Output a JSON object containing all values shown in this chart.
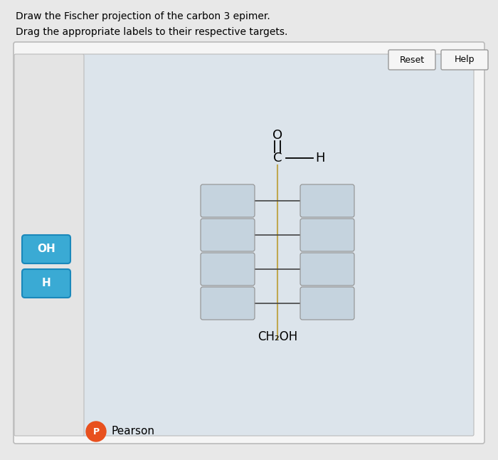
{
  "title_line1": "Draw the Fischer projection of the carbon 3 epimer.",
  "title_line2": "Drag the appropriate labels to their respective targets.",
  "bg_outer": "#e8e8e8",
  "bg_panel_outer": "#f2f2f2",
  "bg_inner": "#dce4eb",
  "box_color": "#c5d3de",
  "box_edge": "#909090",
  "vertical_line_color": "#c0a850",
  "horiz_line_color": "#444444",
  "label_OH_bg": "#3aaad4",
  "label_H_bg": "#3aaad4",
  "label_text_color": "#ffffff",
  "top_label": "O",
  "top_carbon": "C",
  "top_H": "H",
  "bottom_label": "CH₂OH",
  "label1": "OH",
  "label2": "H",
  "pearson_color": "#e8501e"
}
